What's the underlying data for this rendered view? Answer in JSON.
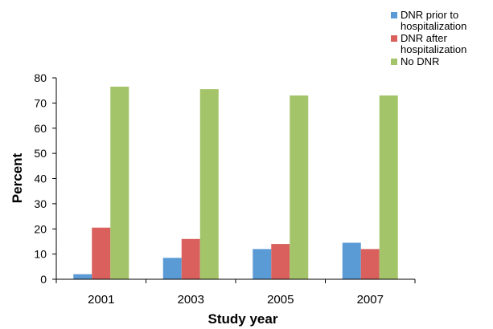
{
  "chart_data": {
    "type": "bar",
    "title": "",
    "xlabel": "Study year",
    "ylabel": "Percent",
    "categories": [
      "2001",
      "2003",
      "2005",
      "2007"
    ],
    "ylim": [
      0,
      80
    ],
    "yticks": [
      "0",
      "10",
      "20",
      "30",
      "40",
      "50",
      "60",
      "70",
      "80"
    ],
    "grid": false,
    "legend_position": "top-right",
    "series": [
      {
        "name": "DNR prior to hospitalization",
        "color": "#5b9bd5",
        "values": [
          2,
          8.5,
          12,
          14.5
        ]
      },
      {
        "name": "DNR after hospitalization",
        "color": "#d9605c",
        "values": [
          20.5,
          16,
          14,
          12
        ]
      },
      {
        "name": "No DNR",
        "color": "#a4c46a",
        "values": [
          76.5,
          75.5,
          73,
          73
        ]
      }
    ]
  }
}
